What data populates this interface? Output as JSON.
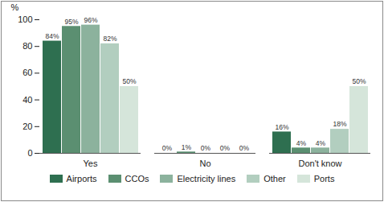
{
  "chart_data": {
    "type": "bar",
    "categories": [
      "Yes",
      "No",
      "Don't know"
    ],
    "y_label": "%",
    "ylim": [
      0,
      100
    ],
    "yticks": [
      0,
      20,
      40,
      60,
      80,
      100
    ],
    "data_labels": true,
    "legend": "bottom",
    "series": [
      {
        "name": "Airports",
        "color": "#2e6f50",
        "values": [
          84,
          0,
          16
        ],
        "value_labels": [
          "84%",
          "0%",
          "16%"
        ]
      },
      {
        "name": "CCOs",
        "color": "#5b8f71",
        "values": [
          95,
          1,
          4
        ],
        "value_labels": [
          "95%",
          "1%",
          "4%"
        ]
      },
      {
        "name": "Electricity lines",
        "color": "#8cb29d",
        "values": [
          96,
          0,
          4
        ],
        "value_labels": [
          "96%",
          "0%",
          "4%"
        ]
      },
      {
        "name": "Other",
        "color": "#b2cebf",
        "values": [
          82,
          0,
          18
        ],
        "value_labels": [
          "82%",
          "0%",
          "18%"
        ]
      },
      {
        "name": "Ports",
        "color": "#d5e5da",
        "values": [
          50,
          0,
          50
        ],
        "value_labels": [
          "50%",
          "0%",
          "50%"
        ]
      }
    ]
  }
}
